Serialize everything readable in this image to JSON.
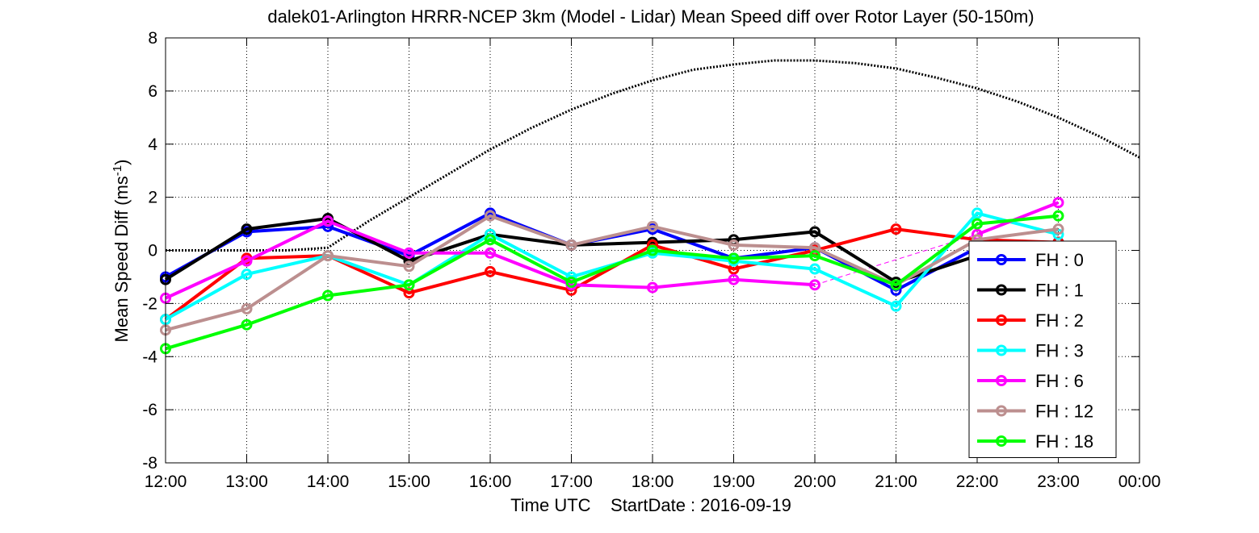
{
  "chart_data": {
    "type": "line",
    "title": "dalek01-Arlington HRRR-NCEP 3km (Model - Lidar) Mean Speed diff over Rotor Layer (50-150m)",
    "xlabel": "Time UTC    StartDate : 2016-09-19",
    "ylabel": "Mean Speed Diff (ms",
    "ylabel_sup": "-1",
    "ylabel_end": ")",
    "xlim": [
      "12:00",
      "00:00"
    ],
    "ylim": [
      -8,
      8
    ],
    "x_ticks": [
      "12:00",
      "13:00",
      "14:00",
      "15:00",
      "16:00",
      "17:00",
      "18:00",
      "19:00",
      "20:00",
      "21:00",
      "22:00",
      "23:00",
      "00:00"
    ],
    "y_ticks": [
      8,
      6,
      4,
      2,
      0,
      -2,
      -4,
      -6,
      -8
    ],
    "y_tick_labels": [
      "8",
      "6",
      "4",
      "2",
      "0",
      "-2",
      "-4",
      "-6",
      "-8"
    ],
    "grid": "dotted",
    "legend_position": "lower-right",
    "x": [
      "12:00",
      "13:00",
      "14:00",
      "15:00",
      "16:00",
      "17:00",
      "18:00",
      "19:00",
      "20:00",
      "21:00",
      "22:00",
      "23:00"
    ],
    "series": [
      {
        "name": "FH : 0",
        "color": "#0000ff",
        "values": [
          -1.0,
          0.7,
          0.9,
          -0.2,
          1.4,
          0.2,
          0.8,
          -0.3,
          0.1,
          -1.5,
          0.1,
          0.3
        ]
      },
      {
        "name": "FH : 1",
        "color": "#000000",
        "values": [
          -1.1,
          0.8,
          1.2,
          -0.4,
          0.6,
          0.2,
          0.3,
          0.4,
          0.7,
          -1.2,
          -0.2,
          0.3
        ]
      },
      {
        "name": "FH : 2",
        "color": "#ff0000",
        "values": [
          -2.6,
          -0.3,
          -0.2,
          -1.6,
          -0.8,
          -1.5,
          0.2,
          -0.7,
          0.0,
          0.8,
          0.4,
          0.3
        ]
      },
      {
        "name": "FH : 3",
        "color": "#00ffff",
        "values": [
          -2.6,
          -0.9,
          -0.2,
          -1.3,
          0.6,
          -1.0,
          -0.1,
          -0.4,
          -0.7,
          -2.1,
          1.4,
          0.6
        ]
      },
      {
        "name": "FH : 6",
        "color": "#ff00ff",
        "values": [
          -1.8,
          -0.4,
          1.1,
          -0.1,
          -0.1,
          -1.3,
          -1.4,
          -1.1,
          -1.3,
          null,
          0.6,
          1.8
        ]
      },
      {
        "name": "FH : 12",
        "color": "#bc8f8f",
        "values": [
          -3.0,
          -2.2,
          -0.2,
          -0.6,
          1.3,
          0.2,
          0.9,
          0.2,
          0.1,
          -1.3,
          0.4,
          0.8
        ]
      },
      {
        "name": "FH : 18",
        "color": "#00ff00",
        "values": [
          -3.7,
          -2.8,
          -1.7,
          -1.3,
          0.4,
          -1.2,
          0.0,
          -0.3,
          -0.2,
          -1.3,
          1.0,
          1.3
        ]
      }
    ],
    "reference_curve": {
      "style": "dotted",
      "color": "#000000",
      "x_hours_after_start": [
        0,
        0.5,
        1,
        1.5,
        2,
        2.5,
        3,
        3.5,
        4,
        4.5,
        5,
        5.5,
        6,
        6.5,
        7,
        7.5,
        8,
        8.5,
        9,
        9.5,
        10,
        10.5,
        11,
        11.5,
        12
      ],
      "values": [
        0.0,
        0.0,
        0.0,
        0.0,
        0.1,
        1.1,
        2.0,
        2.9,
        3.8,
        4.6,
        5.3,
        5.9,
        6.4,
        6.8,
        7.0,
        7.15,
        7.15,
        7.05,
        6.85,
        6.5,
        6.1,
        5.6,
        5.0,
        4.3,
        3.5
      ]
    },
    "connector_fh6": {
      "from": "20:00",
      "to": "22:00",
      "style": "dashed",
      "color": "#ff00ff",
      "values": [
        -1.3,
        0.6
      ]
    }
  }
}
